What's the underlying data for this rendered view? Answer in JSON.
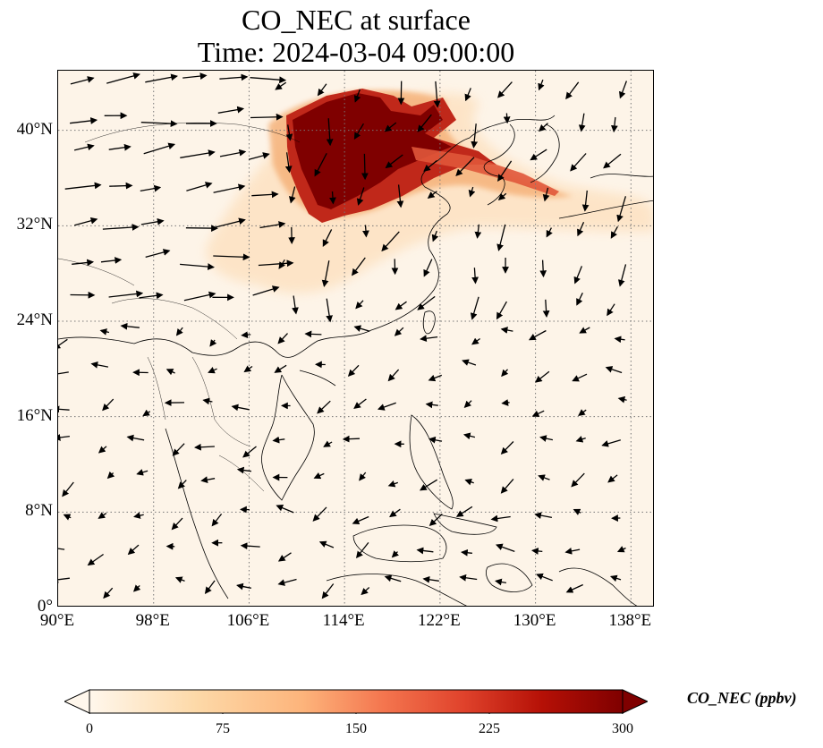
{
  "title": {
    "line1": "CO_NEC at surface",
    "line2": "Time: 2024-03-04 09:00:00"
  },
  "map": {
    "lon_range": [
      90,
      140
    ],
    "lat_range": [
      0,
      45
    ],
    "lat_ticks": [
      {
        "value": 0,
        "label": "0°"
      },
      {
        "value": 8,
        "label": "8°N"
      },
      {
        "value": 16,
        "label": "16°N"
      },
      {
        "value": 24,
        "label": "24°N"
      },
      {
        "value": 32,
        "label": "32°N"
      },
      {
        "value": 40,
        "label": "40°N"
      }
    ],
    "lon_ticks": [
      {
        "value": 90,
        "label": "90°E"
      },
      {
        "value": 98,
        "label": "98°E"
      },
      {
        "value": 106,
        "label": "106°E"
      },
      {
        "value": 114,
        "label": "114°E"
      },
      {
        "value": 122,
        "label": "122°E"
      },
      {
        "value": 130,
        "label": "130°E"
      },
      {
        "value": 138,
        "label": "138°E"
      }
    ],
    "gridlines": "dotted",
    "field_colors": {
      "background": "#fdf4e8",
      "light": "#fde3c4",
      "mid": "#f5a06a",
      "high": "#c0281a",
      "max": "#7f0000"
    }
  },
  "colorbar": {
    "label": "CO_NEC (ppbv)",
    "ticks": [
      {
        "value": 0,
        "label": "0"
      },
      {
        "value": 75,
        "label": "75"
      },
      {
        "value": 150,
        "label": "150"
      },
      {
        "value": 225,
        "label": "225"
      },
      {
        "value": 300,
        "label": "300"
      }
    ],
    "range": [
      0,
      300
    ],
    "extend": "both",
    "colormap": "OrRd"
  }
}
